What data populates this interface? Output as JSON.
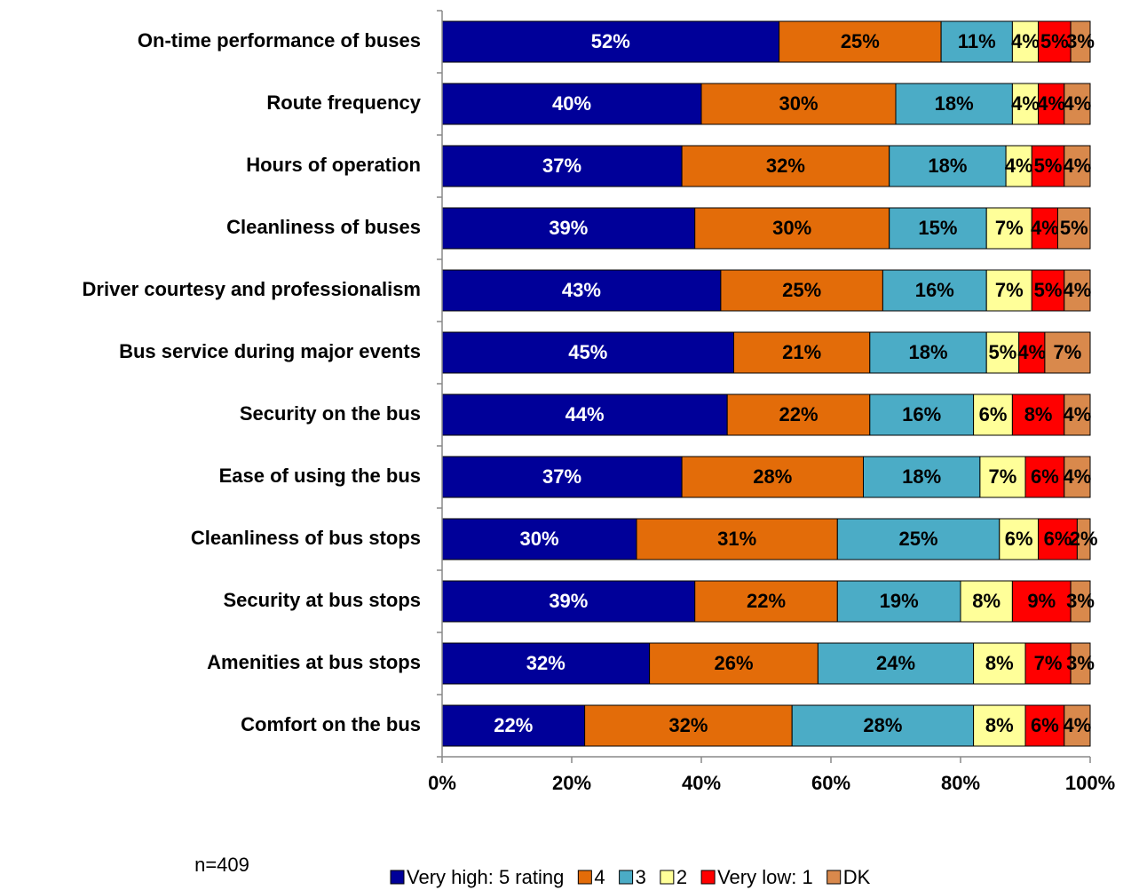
{
  "chart_data": {
    "type": "stacked_bar_horizontal",
    "categories": [
      "On-time performance of buses",
      "Route frequency",
      "Hours of operation",
      "Cleanliness of buses",
      "Driver courtesy and professionalism",
      "Bus service during major events",
      "Security on the bus",
      "Ease of using the bus",
      "Cleanliness of bus stops",
      "Security at bus stops",
      "Amenities at bus stops",
      "Comfort on the bus"
    ],
    "series": [
      {
        "name": "Very high: 5 rating",
        "color": "#000099",
        "label_color": "#ffffff",
        "values": [
          52,
          40,
          37,
          39,
          43,
          45,
          44,
          37,
          30,
          39,
          32,
          22
        ],
        "value_labels": [
          "52%",
          "40%",
          "37%",
          "39%",
          "43%",
          "45%",
          "44%",
          "37%",
          "30%",
          "39%",
          "32%",
          "22%"
        ]
      },
      {
        "name": "4",
        "color": "#e36c09",
        "label_color": "#000000",
        "values": [
          25,
          30,
          32,
          30,
          25,
          21,
          22,
          28,
          31,
          22,
          26,
          32
        ],
        "value_labels": [
          "25%",
          "30%",
          "32%",
          "30%",
          "25%",
          "21%",
          "22%",
          "28%",
          "31%",
          "22%",
          "26%",
          "32%"
        ]
      },
      {
        "name": "3",
        "color": "#4bacc6",
        "label_color": "#000000",
        "values": [
          11,
          18,
          18,
          15,
          16,
          18,
          16,
          18,
          25,
          19,
          24,
          28
        ],
        "value_labels": [
          "11%",
          "18%",
          "18%",
          "15%",
          "16%",
          "18%",
          "16%",
          "18%",
          "25%",
          "19%",
          "24%",
          "28%"
        ]
      },
      {
        "name": "2",
        "color": "#ffff99",
        "label_color": "#000000",
        "values": [
          4,
          4,
          4,
          7,
          7,
          5,
          6,
          7,
          6,
          8,
          8,
          8
        ],
        "value_labels": [
          "4%",
          "4%",
          "4%",
          "7%",
          "7%",
          "5%",
          "6%",
          "7%",
          "6%",
          "8%",
          "8%",
          "8%"
        ]
      },
      {
        "name": "Very low: 1",
        "color": "#ff0000",
        "label_color": "#000000",
        "values": [
          5,
          4,
          5,
          4,
          5,
          4,
          8,
          6,
          6,
          9,
          7,
          6
        ],
        "value_labels": [
          "5%",
          "4%",
          "5%",
          "4%",
          "5%",
          "4%",
          "8%",
          "6%",
          "6%",
          "9%",
          "7%",
          "6%"
        ]
      },
      {
        "name": "DK",
        "color": "#d9894c",
        "label_color": "#000000",
        "values": [
          3,
          4,
          4,
          5,
          4,
          7,
          4,
          4,
          2,
          3,
          3,
          4
        ],
        "value_labels": [
          "3%",
          "4%",
          "4%",
          "5%",
          "4%",
          "7%",
          "4%",
          "4%",
          "2%",
          "3%",
          "3%",
          "4%"
        ]
      }
    ],
    "xlim": [
      0,
      100
    ],
    "xticks": [
      {
        "value": 0,
        "label": "0%"
      },
      {
        "value": 20,
        "label": "20%"
      },
      {
        "value": 40,
        "label": "40%"
      },
      {
        "value": 60,
        "label": "60%"
      },
      {
        "value": 80,
        "label": "80%"
      },
      {
        "value": 100,
        "label": "100%"
      }
    ],
    "annotation": "n=409",
    "legend": "bottom"
  }
}
